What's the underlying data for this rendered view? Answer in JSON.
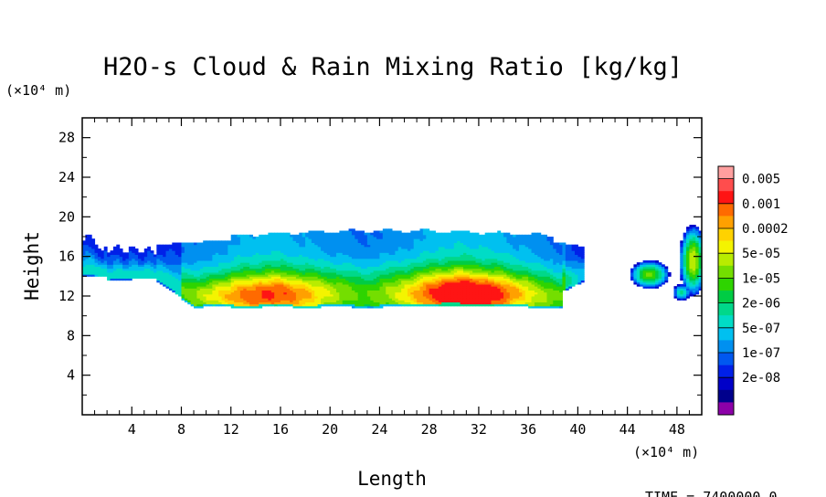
{
  "chart_data": {
    "type": "heatmap",
    "title": "H2O-s Cloud & Rain Mixing Ratio [kg/kg]",
    "xlabel": "Length",
    "ylabel": "Height",
    "x_unit": "(×10⁴ m)",
    "y_unit": "(×10⁴ m)",
    "xlim": [
      0,
      50
    ],
    "ylim": [
      0,
      30
    ],
    "x_ticks": [
      4,
      8,
      12,
      16,
      20,
      24,
      28,
      32,
      36,
      40,
      44,
      48
    ],
    "y_ticks": [
      4,
      8,
      12,
      16,
      20,
      24,
      28
    ],
    "legend": {
      "placement": "right",
      "labels": [
        "0.005",
        "0.001",
        "0.0002",
        "5e-05",
        "1e-05",
        "2e-06",
        "5e-07",
        "1e-07",
        "2e-08"
      ],
      "colors": [
        "#ff9f9f",
        "#ff4d4d",
        "#ff1414",
        "#ff6a00",
        "#ffa000",
        "#ffd200",
        "#f4f400",
        "#b8ec00",
        "#74de00",
        "#2ed400",
        "#00cc44",
        "#00d88a",
        "#00dcc6",
        "#00c0f0",
        "#0090f0",
        "#0058f0",
        "#0020e8",
        "#0000c8",
        "#00008c",
        "#8c00a8"
      ]
    },
    "time_label": "TIME = 7400000.0",
    "cloud_regions": [
      {
        "name": "main-cloud",
        "x_range": [
          0,
          39.5
        ],
        "y_range": [
          10.7,
          19.0
        ],
        "max_value": 0.001
      },
      {
        "name": "right-edge-cloud",
        "x_range": [
          43,
          50
        ],
        "y_range": [
          11.8,
          19.3
        ],
        "max_value": 0.0002
      }
    ]
  }
}
